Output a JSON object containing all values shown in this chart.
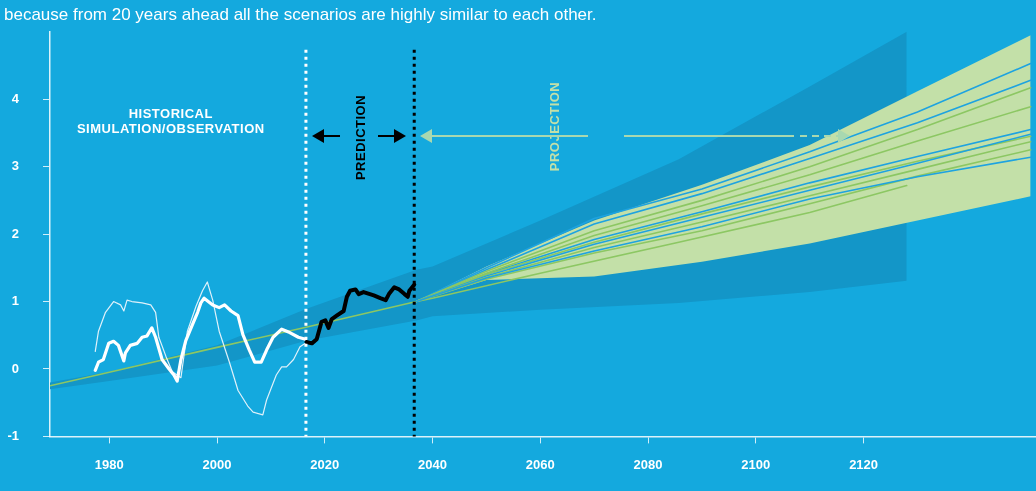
{
  "chart_data": {
    "type": "line",
    "title": "because from 20 years ahead all the scenarios are highly similar to each other.",
    "annotations": [
      "HISTORICAL SIMULATION/OBSERVATION",
      "PREDICTION",
      "PROJECTION"
    ],
    "xlim": [
      1969,
      2152
    ],
    "xticks": [
      1980,
      2000,
      2020,
      2040,
      2060,
      2080,
      2100,
      2120
    ],
    "ylim": [
      -1,
      5
    ],
    "yticks": [
      -1,
      0,
      1,
      2,
      3,
      4
    ],
    "ref_lines": [
      {
        "axis": "x",
        "value": 2016.5,
        "color": "#ffffff",
        "line_style": "dotted"
      },
      {
        "axis": "x",
        "value": 2036.6,
        "color": "#000000",
        "line_style": "dotted"
      }
    ],
    "series": [
      {
        "color": "#8cc763",
        "x": [
          1969,
          1980,
          2000,
          2016.5,
          2037,
          2040,
          2060,
          2085.7,
          2110,
          2128
        ],
        "values": [
          -0.25,
          -0.05,
          0.32,
          0.62,
          1.0,
          1.05,
          1.42,
          1.88,
          2.32,
          2.72
        ],
        "lower": [
          -0.3,
          -0.18,
          0.05,
          0.42,
          0.72,
          0.78,
          0.88,
          0.98,
          1.14,
          1.31
        ],
        "upper": [
          -0.2,
          -0.04,
          0.35,
          0.89,
          1.47,
          1.52,
          2.2,
          3.11,
          4.19,
          5.0
        ]
      },
      {
        "color": "#1ea3e0",
        "x": [
          2037,
          2050,
          2070,
          2090,
          2110,
          2130,
          2151
        ],
        "values": [
          1.0,
          1.41,
          1.92,
          2.33,
          2.76,
          3.15,
          3.55
        ],
        "lower": [
          1.0,
          1.32,
          1.37,
          1.59,
          1.86,
          2.2,
          2.56
        ],
        "upper": [
          1.0,
          1.52,
          2.2,
          2.73,
          3.32,
          4.12,
          4.95
        ]
      },
      {
        "color": "#1ea3e0",
        "x": [
          2037,
          2050,
          2070,
          2090,
          2110,
          2130,
          2151
        ],
        "values": [
          1.0,
          1.5,
          2.23,
          2.67,
          3.22,
          3.81,
          4.53
        ]
      },
      {
        "color": "#1ea3e0",
        "x": [
          2037,
          2050,
          2070,
          2090,
          2110,
          2130,
          2151
        ],
        "values": [
          1.0,
          1.47,
          2.15,
          2.6,
          3.12,
          3.65,
          4.28
        ]
      },
      {
        "color": "#8cc763",
        "x": [
          2037,
          2050,
          2070,
          2090,
          2110,
          2130,
          2151
        ],
        "values": [
          1.0,
          1.45,
          2.05,
          2.5,
          3.0,
          3.55,
          4.17
        ]
      },
      {
        "color": "#8cc763",
        "x": [
          2037,
          2050,
          2070,
          2090,
          2110,
          2130,
          2151
        ],
        "values": [
          1.0,
          1.42,
          1.98,
          2.42,
          2.88,
          3.38,
          3.89
        ]
      },
      {
        "color": "#8cc763",
        "x": [
          2037,
          2050,
          2070,
          2090,
          2110,
          2130,
          2151
        ],
        "values": [
          1.0,
          1.4,
          1.88,
          2.3,
          2.7,
          3.08,
          3.45
        ]
      },
      {
        "color": "#1ea3e0",
        "x": [
          2037,
          2050,
          2070,
          2090,
          2110,
          2130,
          2151
        ],
        "values": [
          1.0,
          1.38,
          1.85,
          2.25,
          2.65,
          3.05,
          3.48
        ]
      },
      {
        "color": "#8cc763",
        "x": [
          2037,
          2050,
          2070,
          2090,
          2110,
          2130,
          2151
        ],
        "values": [
          1.0,
          1.36,
          1.8,
          2.18,
          2.57,
          2.96,
          3.37
        ]
      },
      {
        "color": "#8cc763",
        "x": [
          2037,
          2050,
          2070,
          2090,
          2110,
          2130,
          2151
        ],
        "values": [
          1.0,
          1.33,
          1.72,
          2.05,
          2.45,
          2.86,
          3.25
        ]
      },
      {
        "color": "#1ea3e0",
        "x": [
          2037,
          2050,
          2070,
          2090,
          2110,
          2130,
          2151
        ],
        "values": [
          1.0,
          1.35,
          1.75,
          2.11,
          2.52,
          2.85,
          3.14
        ]
      },
      {
        "color": "#dff1fa",
        "x": [
          1977.4,
          1978.0,
          1979.3,
          1980.8,
          1982.1,
          1982.7,
          1983.3,
          1984.2,
          1986.1,
          1987.7,
          1988.6,
          1989.2,
          1990.5,
          1991.7,
          1993.3,
          1994.5,
          1996.1,
          1997.3,
          1998.2,
          1999.2,
          2000.4,
          2002.3,
          2003.9,
          2005.7,
          2006.7,
          2008.5,
          2009.2,
          2011.0,
          2012.0,
          2012.9,
          2014.2,
          2015.4,
          2016.4
        ],
        "values": [
          0.26,
          0.56,
          0.84,
          1.0,
          0.95,
          0.86,
          1.02,
          1.0,
          0.98,
          0.95,
          0.84,
          0.47,
          0.19,
          -0.04,
          -0.13,
          0.56,
          0.93,
          1.16,
          1.29,
          1.02,
          0.56,
          0.1,
          -0.32,
          -0.55,
          -0.64,
          -0.68,
          -0.46,
          -0.09,
          0.03,
          0.03,
          0.14,
          0.33,
          0.38
        ]
      },
      {
        "color": "#ffffff",
        "x": [
          1977.4,
          1978.0,
          1978.9,
          1979.9,
          1980.8,
          1981.7,
          1982.7,
          1983.0,
          1983.9,
          1985.2,
          1986.1,
          1987.0,
          1987.9,
          1988.6,
          1989.8,
          1991.1,
          1992.0,
          1992.6,
          1993.3,
          1994.2,
          1995.4,
          1996.4,
          1997.0,
          1997.6,
          1999.2,
          2000.4,
          2001.4,
          2002.6,
          2003.9,
          2004.8,
          2006.0,
          2007.0,
          2008.2,
          2009.2,
          2010.4,
          2012.0,
          2013.5,
          2015.1,
          2016.4
        ],
        "values": [
          -0.02,
          0.1,
          0.14,
          0.38,
          0.41,
          0.35,
          0.12,
          0.24,
          0.35,
          0.38,
          0.47,
          0.49,
          0.61,
          0.47,
          0.14,
          0.0,
          -0.09,
          -0.18,
          0.14,
          0.42,
          0.65,
          0.84,
          0.98,
          1.05,
          0.95,
          0.91,
          0.95,
          0.86,
          0.79,
          0.51,
          0.28,
          0.1,
          0.1,
          0.28,
          0.47,
          0.59,
          0.54,
          0.47,
          0.44
        ]
      },
      {
        "color": "#000000",
        "x": [
          2016.6,
          2017.6,
          2018.5,
          2019.4,
          2020.1,
          2020.7,
          2021.3,
          2022.2,
          2023.5,
          2024.1,
          2024.7,
          2025.7,
          2026.3,
          2027.2,
          2029.1,
          2030.3,
          2031.3,
          2031.9,
          2032.9,
          2033.8,
          2034.8,
          2035.4,
          2035.7,
          2036.6
        ],
        "values": [
          0.4,
          0.38,
          0.44,
          0.7,
          0.72,
          0.61,
          0.74,
          0.79,
          0.86,
          1.07,
          1.16,
          1.18,
          1.11,
          1.14,
          1.09,
          1.05,
          1.02,
          1.11,
          1.21,
          1.18,
          1.11,
          1.07,
          1.16,
          1.25
        ]
      }
    ]
  }
}
